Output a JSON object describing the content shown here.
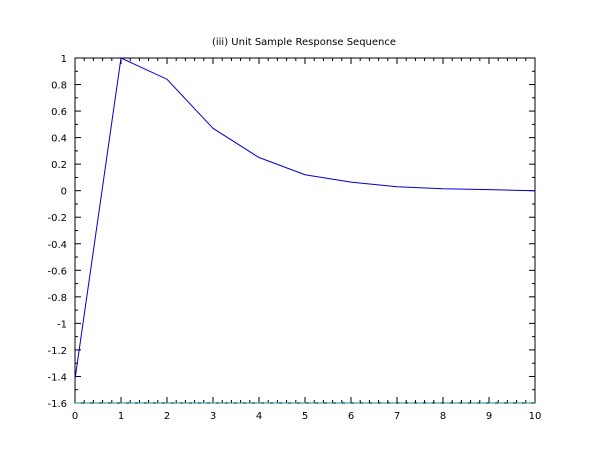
{
  "chart_data": {
    "type": "line",
    "title": "(iii)    Unit Sample Response Sequence",
    "xlabel": "",
    "ylabel": "",
    "xlim": [
      0,
      10
    ],
    "ylim": [
      -1.6,
      1
    ],
    "x_ticks": [
      "0",
      "1",
      "2",
      "3",
      "4",
      "5",
      "6",
      "7",
      "8",
      "9",
      "10"
    ],
    "y_ticks": [
      "1",
      "0.8",
      "0.6",
      "0.4",
      "0.2",
      "0",
      "-0.2",
      "-0.4",
      "-0.6",
      "-0.8",
      "-1",
      "-1.2",
      "-1.4",
      "-1.6"
    ],
    "grid": false,
    "series": [
      {
        "color": "#0000cc",
        "x": [
          0,
          1,
          2,
          3,
          4,
          5,
          6,
          7,
          8,
          9,
          10
        ],
        "values": [
          -1.42,
          1.0,
          0.84,
          0.47,
          0.25,
          0.12,
          0.065,
          0.03,
          0.015,
          0.008,
          0.0
        ]
      },
      {
        "color": "#009999",
        "style": "dashed",
        "x": [
          0,
          10
        ],
        "values": [
          -1.6,
          -1.6
        ]
      }
    ]
  }
}
